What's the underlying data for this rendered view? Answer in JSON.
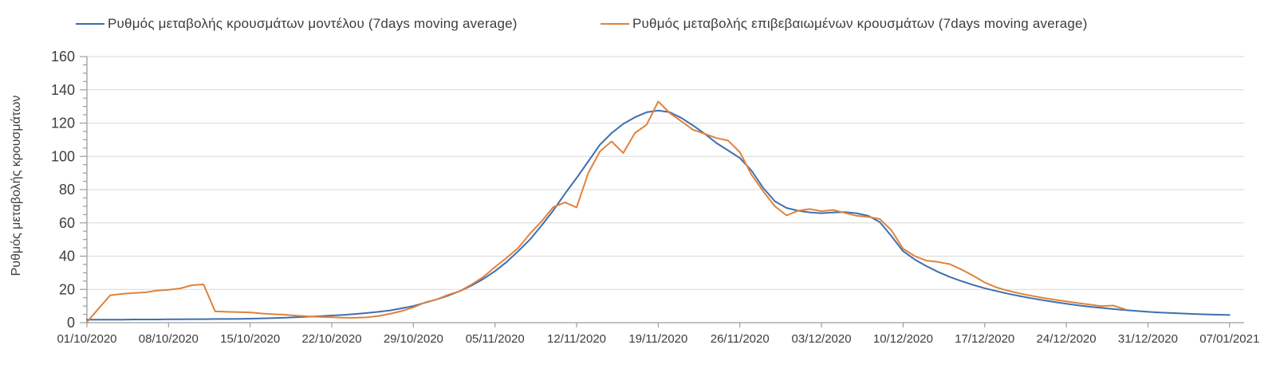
{
  "colors": {
    "text": "#3d3d3d",
    "axis": "#9e9e9e",
    "grid": "#d9d9d9",
    "model_blue": "#3e6fae",
    "confirmed_orange": "#e0823c"
  },
  "chart_data": {
    "type": "line",
    "title": "",
    "xlabel": "",
    "ylabel": "Ρυθμός μεταβολής κρουσμάτων",
    "ylim": [
      0,
      160
    ],
    "y_ticks": [
      0,
      20,
      40,
      60,
      80,
      100,
      120,
      140,
      160
    ],
    "grid": "horizontal",
    "legend_position": "top",
    "x_unit": "day",
    "days_per_tick": 7,
    "x_tick_labels": [
      "01/10/2020",
      "08/10/2020",
      "15/10/2020",
      "22/10/2020",
      "29/10/2020",
      "05/11/2020",
      "12/11/2020",
      "19/11/2020",
      "26/11/2020",
      "03/12/2020",
      "10/12/2020",
      "17/12/2020",
      "24/12/2020",
      "31/12/2020",
      "07/01/2021"
    ],
    "series": [
      {
        "name": "Ρυθμός μεταβολής κρουσμάτων μοντέλου (7days moving average)",
        "color": "#3e6fae",
        "start": "01/10/2020",
        "values": [
          1.8,
          1.8,
          1.8,
          1.8,
          1.9,
          1.9,
          1.9,
          2.0,
          2.0,
          2.1,
          2.1,
          2.2,
          2.2,
          2.3,
          2.4,
          2.6,
          2.8,
          3.0,
          3.3,
          3.6,
          3.9,
          4.3,
          4.7,
          5.2,
          5.8,
          6.5,
          7.4,
          8.6,
          10.0,
          12.0,
          14.0,
          16.3,
          19.0,
          22.3,
          26.3,
          31.0,
          36.5,
          43.0,
          50.0,
          58.5,
          67.5,
          77.5,
          87.0,
          97.0,
          107.0,
          114.0,
          119.5,
          123.5,
          126.5,
          127.5,
          126.5,
          123.0,
          118.5,
          113.5,
          108.0,
          103.5,
          99.0,
          91.5,
          81.0,
          73.0,
          69.0,
          67.3,
          66.3,
          65.8,
          66.3,
          66.5,
          65.8,
          64.3,
          60.5,
          52.0,
          43.0,
          38.0,
          34.0,
          30.5,
          27.5,
          25.0,
          22.7,
          20.7,
          19.0,
          17.4,
          16.0,
          14.7,
          13.5,
          12.4,
          11.4,
          10.4,
          9.6,
          8.9,
          8.2,
          7.6,
          7.1,
          6.5,
          6.1,
          5.8,
          5.5,
          5.2,
          5.0,
          4.8,
          4.6
        ]
      },
      {
        "name": "Ρυθμός μεταβολής επιβεβαιωμένων κρουσμάτων (7days moving average)",
        "color": "#e0823c",
        "start": "01/10/2020",
        "values": [
          0.3,
          8.5,
          16.5,
          17.3,
          17.8,
          18.2,
          19.3,
          19.8,
          20.6,
          22.5,
          23.0,
          6.8,
          6.5,
          6.3,
          6.2,
          5.5,
          5.1,
          4.8,
          4.2,
          3.8,
          3.5,
          3.2,
          3.0,
          2.9,
          3.2,
          4.0,
          5.3,
          7.0,
          9.2,
          12.2,
          14.0,
          16.8,
          19.0,
          23.0,
          27.5,
          33.5,
          39.0,
          45.0,
          53.5,
          61.0,
          69.5,
          72.3,
          69.3,
          90.0,
          103.0,
          109.0,
          102.0,
          114.0,
          119.0,
          133.0,
          126.0,
          121.0,
          116.0,
          113.5,
          111.0,
          109.5,
          102.5,
          89.0,
          79.0,
          70.0,
          64.5,
          67.3,
          68.3,
          67.0,
          67.8,
          66.0,
          64.3,
          63.6,
          62.3,
          55.5,
          44.5,
          40.0,
          37.3,
          36.5,
          35.2,
          32.0,
          28.3,
          24.2,
          21.2,
          19.2,
          17.6,
          16.2,
          14.9,
          13.8,
          12.8,
          11.8,
          10.9,
          9.9,
          10.3,
          8.2
        ]
      }
    ]
  }
}
